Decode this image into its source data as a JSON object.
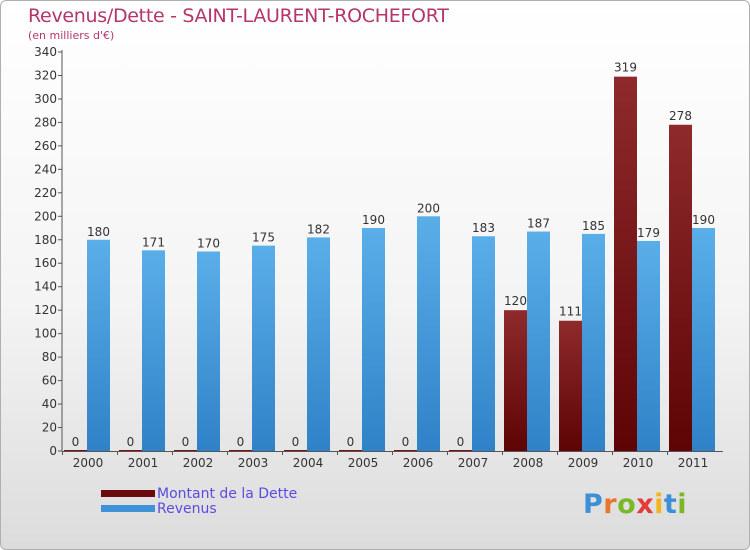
{
  "header": {
    "title": "Revenus/Dette - SAINT-LAURENT-ROCHEFORT",
    "subtitle": "(en milliers d'€)"
  },
  "legend": {
    "debt_label": "Montant de la Dette",
    "revenue_label": "Revenus"
  },
  "logo": {
    "letters": [
      "P",
      "r",
      "o",
      "x",
      "i",
      "t",
      "i"
    ],
    "colors": [
      "#3d8fd6",
      "#e8762b",
      "#7ab829",
      "#e33b3b",
      "#f2b51d",
      "#3d8fd6",
      "#7ab829"
    ]
  },
  "colors": {
    "debt": "#7a0f12",
    "revenue": "#3e93d8",
    "title": "#b4366a",
    "legend_text": "#5b4be0"
  },
  "chart_data": {
    "type": "bar",
    "title": "Revenus/Dette - SAINT-LAURENT-ROCHEFORT",
    "subtitle": "(en milliers d'€)",
    "xlabel": "",
    "ylabel": "",
    "ylim": [
      0,
      340
    ],
    "ytick_step": 20,
    "grid": false,
    "legend_position": "bottom-left",
    "categories": [
      "2000",
      "2001",
      "2002",
      "2003",
      "2004",
      "2005",
      "2006",
      "2007",
      "2008",
      "2009",
      "2010",
      "2011"
    ],
    "series": [
      {
        "name": "Montant de la Dette",
        "values": [
          0,
          0,
          0,
          0,
          0,
          0,
          0,
          0,
          120,
          111,
          319,
          278
        ]
      },
      {
        "name": "Revenus",
        "values": [
          180,
          171,
          170,
          175,
          182,
          190,
          200,
          183,
          187,
          185,
          179,
          190
        ]
      }
    ]
  }
}
